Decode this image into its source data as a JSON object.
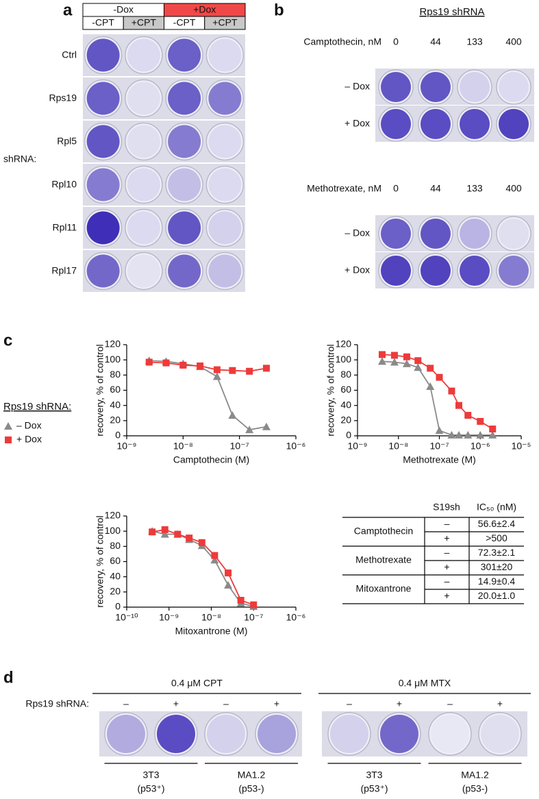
{
  "panel_a": {
    "label": "a",
    "dox": [
      "-Dox",
      "+Dox"
    ],
    "cpt": [
      "-CPT",
      "+CPT",
      "-CPT",
      "+CPT"
    ],
    "shrna": "shRNA:",
    "rows": [
      "Ctrl",
      "Rps19",
      "Rpl5",
      "Rpl10",
      "Rpl11",
      "Rpl17"
    ]
  },
  "panel_b": {
    "label": "b",
    "title": "Rps19 shRNA",
    "groups": [
      {
        "drug": "Camptothecin, nM",
        "doses": [
          0,
          44,
          133,
          400
        ],
        "rows": [
          "– Dox",
          "+ Dox"
        ]
      },
      {
        "drug": "Methotrexate, nM",
        "doses": [
          0,
          44,
          133,
          400
        ],
        "rows": [
          "– Dox",
          "+ Dox"
        ]
      }
    ]
  },
  "panel_c": {
    "label": "c",
    "legend_title": "Rps19 shRNA:"
  },
  "chart_data": [
    {
      "type": "line",
      "xscale": "log",
      "xlabel": "Camptothecin (M)",
      "ylabel": "recovery,  % of control",
      "x": [
        2.5e-09,
        5e-09,
        1e-08,
        2e-08,
        4e-08,
        7.5e-08,
        1.5e-07,
        3e-07
      ],
      "xlim": [
        1e-09,
        1e-06
      ],
      "xticks": [
        {
          "value": 1e-09,
          "label": "10⁻⁹"
        },
        {
          "value": 1e-08,
          "label": "10⁻⁸"
        },
        {
          "value": 1e-07,
          "label": "10⁻⁷"
        },
        {
          "value": 1e-06,
          "label": "10⁻⁶"
        }
      ],
      "ylim": [
        0,
        120
      ],
      "yticks": [
        0,
        20,
        40,
        60,
        80,
        100,
        120
      ],
      "series": [
        {
          "name": "– Dox",
          "color": "#8a8a8a",
          "marker": "triangle",
          "values": [
            99,
            98,
            95,
            91,
            78,
            27,
            8,
            12
          ]
        },
        {
          "name": "+ Dox",
          "color": "#ee3a3a",
          "marker": "square",
          "values": [
            97,
            96,
            93,
            92,
            87,
            86,
            85,
            89
          ]
        }
      ]
    },
    {
      "type": "line",
      "xscale": "log",
      "xlabel": "Methotrexate (M)",
      "ylabel": "recovery,  % of control",
      "x": [
        4e-09,
        8e-09,
        1.6e-08,
        3e-08,
        6e-08,
        1e-07,
        2e-07,
        3e-07,
        5e-07,
        1e-06,
        2e-06
      ],
      "xlim": [
        1e-09,
        1e-05
      ],
      "xticks": [
        {
          "value": 1e-09,
          "label": "10⁻⁹"
        },
        {
          "value": 1e-08,
          "label": "10⁻⁸"
        },
        {
          "value": 1e-07,
          "label": "10⁻⁷"
        },
        {
          "value": 1e-06,
          "label": "10⁻⁶"
        },
        {
          "value": 1e-05,
          "label": "10⁻⁵"
        }
      ],
      "ylim": [
        0,
        120
      ],
      "yticks": [
        0,
        20,
        40,
        60,
        80,
        100,
        120
      ],
      "series": [
        {
          "color": "#8a8a8a",
          "marker": "triangle",
          "values": [
            98,
            97,
            95,
            90,
            65,
            7,
            1,
            1,
            1,
            1,
            1
          ]
        },
        {
          "color": "#ee3a3a",
          "marker": "square",
          "values": [
            107,
            106,
            104,
            99,
            89,
            77,
            59,
            40,
            27,
            19,
            9
          ]
        }
      ]
    },
    {
      "type": "line",
      "xscale": "log",
      "xlabel": "Mitoxantrone (M)",
      "ylabel": "recovery,  % of control",
      "x": [
        4e-10,
        8e-10,
        1.6e-09,
        3e-09,
        6e-09,
        1.2e-08,
        2.5e-08,
        5e-08,
        1e-07
      ],
      "xlim": [
        1e-10,
        1e-06
      ],
      "xticks": [
        {
          "value": 1e-10,
          "label": "10⁻¹⁰"
        },
        {
          "value": 1e-09,
          "label": "10⁻⁹"
        },
        {
          "value": 1e-08,
          "label": "10⁻⁸"
        },
        {
          "value": 1e-07,
          "label": "10⁻⁷"
        },
        {
          "value": 1e-06,
          "label": "10⁻⁶"
        }
      ],
      "ylim": [
        0,
        120
      ],
      "yticks": [
        0,
        20,
        40,
        60,
        80,
        100,
        120
      ],
      "series": [
        {
          "color": "#8a8a8a",
          "marker": "triangle",
          "values": [
            100,
            96,
            96,
            89,
            81,
            62,
            29,
            5,
            1
          ]
        },
        {
          "color": "#ee3a3a",
          "marker": "square",
          "values": [
            99,
            102,
            96,
            91,
            85,
            68,
            45,
            9,
            3
          ]
        }
      ]
    }
  ],
  "table": {
    "header": [
      "S19sh",
      "IC₅₀ (nM)"
    ],
    "groups": [
      {
        "drug": "Camptothecin",
        "rows": [
          [
            "–",
            "56.6±2.4"
          ],
          [
            "+",
            ">500"
          ]
        ]
      },
      {
        "drug": "Methotrexate",
        "rows": [
          [
            "–",
            "72.3±2.1"
          ],
          [
            "+",
            "301±20"
          ]
        ]
      },
      {
        "drug": "Mitoxantrone",
        "rows": [
          [
            "–",
            "14.9±0.4"
          ],
          [
            "+",
            "20.0±1.0"
          ]
        ]
      }
    ]
  },
  "panel_d": {
    "label": "d",
    "treatments": [
      "0.4 μM CPT",
      "0.4 μM MTX"
    ],
    "shrna": "Rps19 shRNA:",
    "signs": [
      "–",
      "+",
      "–",
      "+",
      "–",
      "+",
      "–",
      "+"
    ],
    "cells": [
      {
        "name": "3T3",
        "p53": "(p53⁺)"
      },
      {
        "name": "MA1.2",
        "p53": "(p53-)"
      },
      {
        "name": "3T3",
        "p53": "(p53⁺)"
      },
      {
        "name": "MA1.2",
        "p53": "(p53-)"
      }
    ]
  }
}
